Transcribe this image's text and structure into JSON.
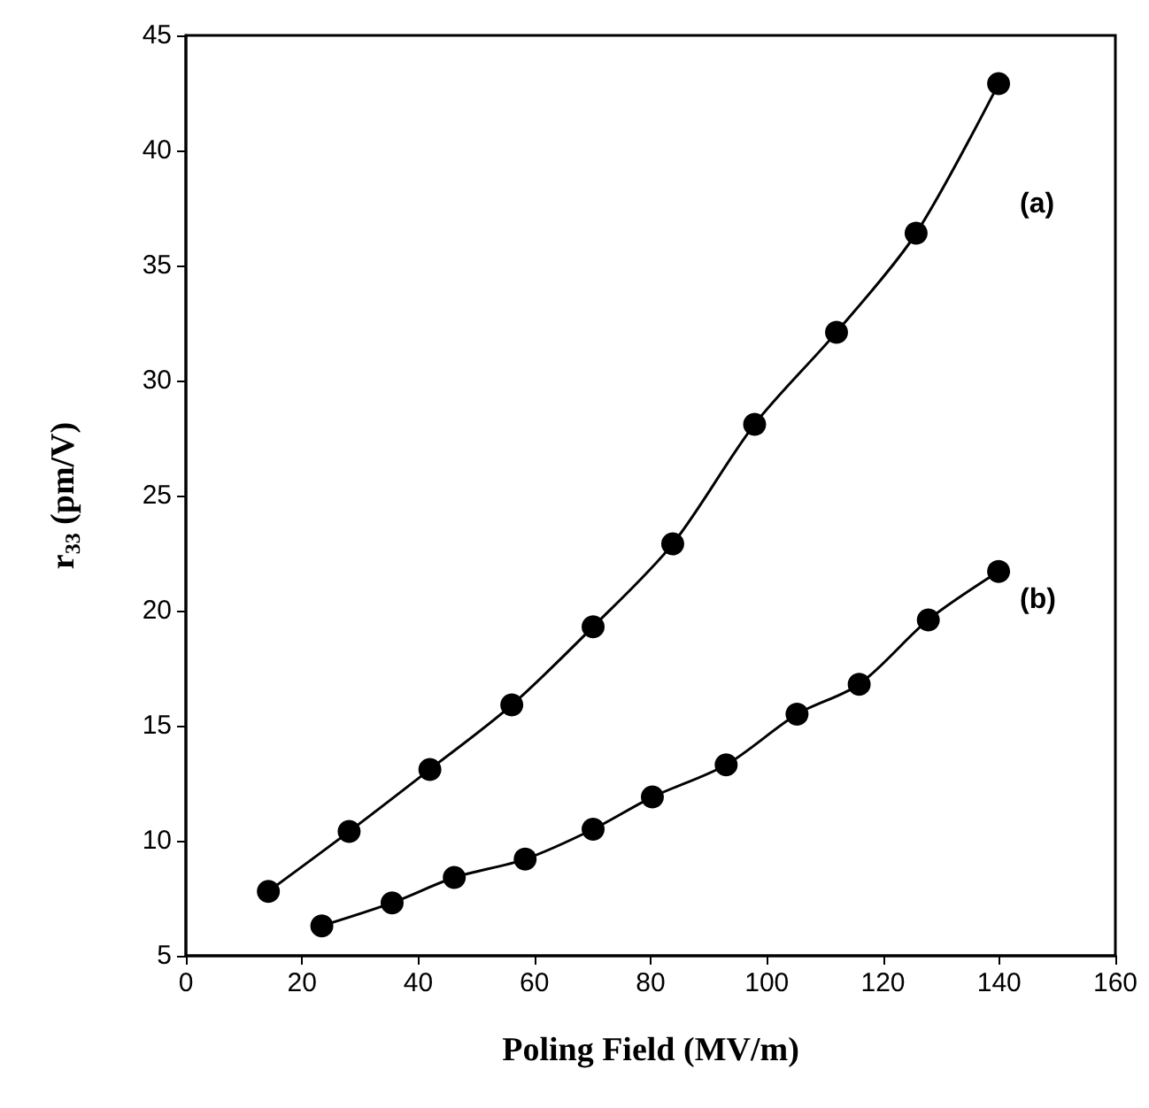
{
  "chart_data": {
    "type": "line",
    "xlabel": "Poling Field (MV/m)",
    "ylabel": "r$_{33}$ (pm/V)",
    "xlim": [
      0,
      160
    ],
    "xticks": [
      0,
      20,
      40,
      60,
      80,
      100,
      120,
      140,
      160
    ],
    "ylim": [
      5,
      45
    ],
    "yticks": [
      5,
      10,
      15,
      20,
      25,
      30,
      35,
      40,
      45
    ],
    "grid": false,
    "legend": false,
    "marker": "circle",
    "line_style": "solid",
    "series": [
      {
        "name": "(a)",
        "color": "#000000",
        "x": [
          14.2,
          28.1,
          42,
          56.1,
          70.1,
          83.8,
          97.9,
          112,
          125.7,
          139.9
        ],
        "values": [
          7.8,
          10.4,
          13.1,
          15.9,
          19.3,
          22.9,
          28.1,
          32.1,
          36.4,
          42.9
        ]
      },
      {
        "name": "(b)",
        "color": "#000000",
        "x": [
          23.4,
          35.5,
          46.2,
          58.4,
          70.1,
          80.3,
          93,
          105.2,
          115.9,
          127.8,
          139.9
        ],
        "values": [
          6.3,
          7.3,
          8.4,
          9.2,
          10.5,
          11.9,
          13.3,
          15.5,
          16.8,
          19.6,
          21.7
        ]
      }
    ]
  }
}
